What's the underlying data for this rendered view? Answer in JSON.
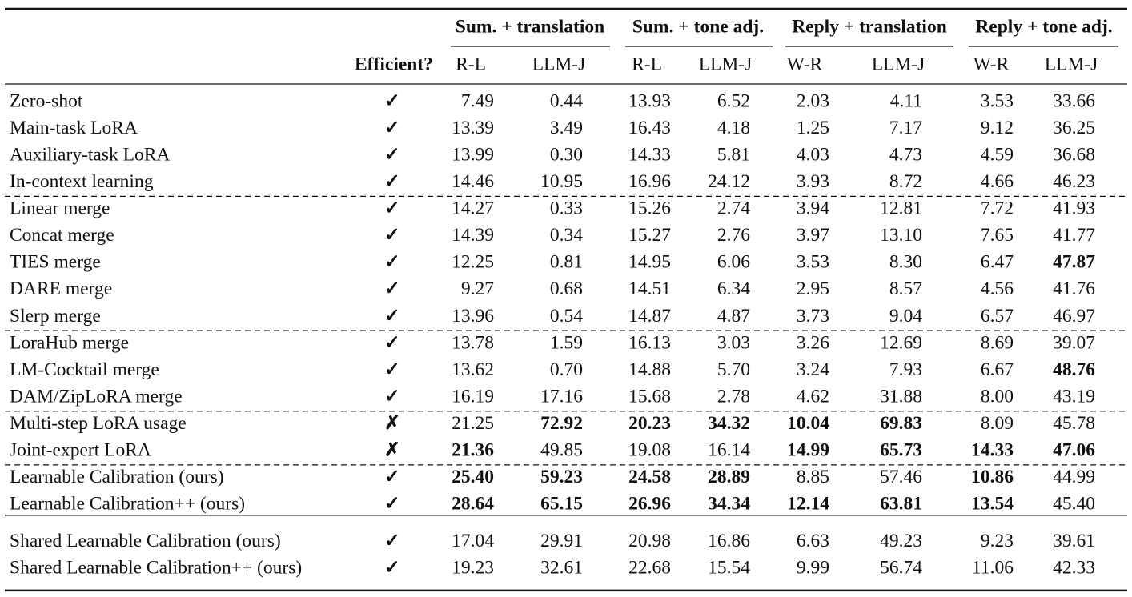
{
  "table": {
    "groups": [
      "Sum. + translation",
      "Sum. + tone adj.",
      "Reply + translation",
      "Reply + tone adj."
    ],
    "efficient_header": "Efficient?",
    "columns": [
      "R-L",
      "LLM-J",
      "R-L",
      "LLM-J",
      "W-R",
      "LLM-J",
      "W-R",
      "LLM-J"
    ],
    "sections": [
      {
        "rows": [
          {
            "name": "Zero-shot",
            "efficient": "✓",
            "values": [
              "7.49",
              "0.44",
              "13.93",
              "6.52",
              "2.03",
              "4.11",
              "3.53",
              "33.66"
            ],
            "bold": []
          },
          {
            "name": "Main-task LoRA",
            "efficient": "✓",
            "values": [
              "13.39",
              "3.49",
              "16.43",
              "4.18",
              "1.25",
              "7.17",
              "9.12",
              "36.25"
            ],
            "bold": []
          },
          {
            "name": "Auxiliary-task LoRA",
            "efficient": "✓",
            "values": [
              "13.99",
              "0.30",
              "14.33",
              "5.81",
              "4.03",
              "4.73",
              "4.59",
              "36.68"
            ],
            "bold": []
          },
          {
            "name": "In-context learning",
            "efficient": "✓",
            "values": [
              "14.46",
              "10.95",
              "16.96",
              "24.12",
              "3.93",
              "8.72",
              "4.66",
              "46.23"
            ],
            "bold": []
          }
        ]
      },
      {
        "rows": [
          {
            "name": "Linear merge",
            "efficient": "✓",
            "values": [
              "14.27",
              "0.33",
              "15.26",
              "2.74",
              "3.94",
              "12.81",
              "7.72",
              "41.93"
            ],
            "bold": []
          },
          {
            "name": "Concat merge",
            "efficient": "✓",
            "values": [
              "14.39",
              "0.34",
              "15.27",
              "2.76",
              "3.97",
              "13.10",
              "7.65",
              "41.77"
            ],
            "bold": []
          },
          {
            "name": "TIES merge",
            "efficient": "✓",
            "values": [
              "12.25",
              "0.81",
              "14.95",
              "6.06",
              "3.53",
              "8.30",
              "6.47",
              "47.87"
            ],
            "bold": [
              7
            ]
          },
          {
            "name": "DARE merge",
            "efficient": "✓",
            "values": [
              "9.27",
              "0.68",
              "14.51",
              "6.34",
              "2.95",
              "8.57",
              "4.56",
              "41.76"
            ],
            "bold": []
          },
          {
            "name": "Slerp merge",
            "efficient": "✓",
            "values": [
              "13.96",
              "0.54",
              "14.87",
              "4.87",
              "3.73",
              "9.04",
              "6.57",
              "46.97"
            ],
            "bold": []
          }
        ]
      },
      {
        "rows": [
          {
            "name": "LoraHub merge",
            "efficient": "✓",
            "values": [
              "13.78",
              "1.59",
              "16.13",
              "3.03",
              "3.26",
              "12.69",
              "8.69",
              "39.07"
            ],
            "bold": []
          },
          {
            "name": "LM-Cocktail merge",
            "efficient": "✓",
            "values": [
              "13.62",
              "0.70",
              "14.88",
              "5.70",
              "3.24",
              "7.93",
              "6.67",
              "48.76"
            ],
            "bold": [
              7
            ]
          },
          {
            "name": "DAM/ZipLoRA merge",
            "efficient": "✓",
            "values": [
              "16.19",
              "17.16",
              "15.68",
              "2.78",
              "4.62",
              "31.88",
              "8.00",
              "43.19"
            ],
            "bold": []
          }
        ]
      },
      {
        "rows": [
          {
            "name": "Multi-step LoRA usage",
            "efficient": "✗",
            "values": [
              "21.25",
              "72.92",
              "20.23",
              "34.32",
              "10.04",
              "69.83",
              "8.09",
              "45.78"
            ],
            "bold": [
              1,
              2,
              3,
              4,
              5
            ]
          },
          {
            "name": "Joint-expert LoRA",
            "efficient": "✗",
            "values": [
              "21.36",
              "49.85",
              "19.08",
              "16.14",
              "14.99",
              "65.73",
              "14.33",
              "47.06"
            ],
            "bold": [
              0,
              4,
              5,
              6,
              7
            ]
          }
        ]
      },
      {
        "rows": [
          {
            "name": "Learnable Calibration (ours)",
            "efficient": "✓",
            "values": [
              "25.40",
              "59.23",
              "24.58",
              "28.89",
              "8.85",
              "57.46",
              "10.86",
              "44.99"
            ],
            "bold": [
              0,
              1,
              2,
              3,
              6
            ]
          },
          {
            "name": "Learnable Calibration++ (ours)",
            "efficient": "✓",
            "values": [
              "28.64",
              "65.15",
              "26.96",
              "34.34",
              "12.14",
              "63.81",
              "13.54",
              "45.40"
            ],
            "bold": [
              0,
              1,
              2,
              3,
              4,
              5,
              6
            ]
          }
        ]
      },
      {
        "rows": [
          {
            "name": "Shared Learnable Calibration (ours)",
            "efficient": "✓",
            "values": [
              "17.04",
              "29.91",
              "20.98",
              "16.86",
              "6.63",
              "49.23",
              "9.23",
              "39.61"
            ],
            "bold": []
          },
          {
            "name": "Shared Learnable Calibration++ (ours)",
            "efficient": "✓",
            "values": [
              "19.23",
              "32.61",
              "22.68",
              "15.54",
              "9.99",
              "56.74",
              "11.06",
              "42.33"
            ],
            "bold": []
          }
        ]
      }
    ]
  }
}
